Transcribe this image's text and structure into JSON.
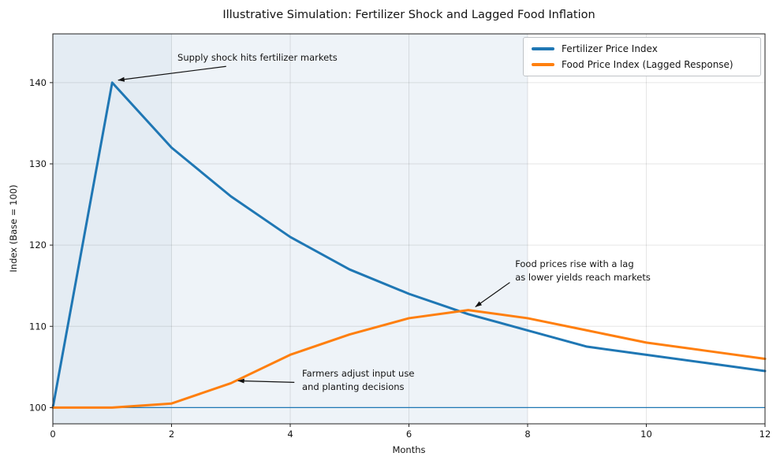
{
  "title": "Illustrative Simulation: Fertilizer Shock and Lagged Food Inflation",
  "chart_data": {
    "type": "line",
    "x": [
      0,
      1,
      2,
      3,
      4,
      5,
      6,
      7,
      8,
      9,
      10,
      11,
      12
    ],
    "series": [
      {
        "name": "Fertilizer Price Index",
        "color": "#1f77b4",
        "values": [
          100,
          140,
          132,
          126,
          121,
          117,
          114,
          111.5,
          109.5,
          107.5,
          106.5,
          105.5,
          104.5
        ]
      },
      {
        "name": "Food Price Index (Lagged Response)",
        "color": "#ff7f0e",
        "values": [
          100,
          100,
          100.5,
          103,
          106.5,
          109,
          111,
          112,
          111,
          109.5,
          108,
          107,
          106
        ]
      }
    ],
    "xlabel": "Months",
    "ylabel": "Index (Base = 100)",
    "xlim": [
      0,
      12
    ],
    "ylim": [
      98,
      146
    ],
    "xticks": [
      0,
      2,
      4,
      6,
      8,
      10,
      12
    ],
    "yticks": [
      100,
      110,
      120,
      130,
      140
    ],
    "grid": true,
    "legend_position": "upper right",
    "baseline": {
      "y": 100,
      "color": "#1f77b4"
    },
    "shaded_spans": [
      {
        "x0": 0,
        "x1": 2,
        "color": "#e4ecf3"
      },
      {
        "x0": 2,
        "x1": 8,
        "color": "#eef3f8"
      }
    ],
    "annotations": [
      {
        "lines": [
          "Supply shock hits fertilizer markets"
        ],
        "text_x": 2.1,
        "text_y": 143.9,
        "arrow_from": [
          2.92,
          142.0
        ],
        "arrow_to": [
          1.1,
          140.3
        ]
      },
      {
        "lines": [
          "Food prices rise with a lag",
          "as lower yields reach markets"
        ],
        "text_x": 7.79,
        "text_y": 118.5,
        "arrow_from": [
          7.7,
          115.4
        ],
        "arrow_to": [
          7.12,
          112.4
        ]
      },
      {
        "lines": [
          "Farmers adjust input use",
          "and planting decisions"
        ],
        "text_x": 4.2,
        "text_y": 105.0,
        "arrow_from": [
          4.07,
          103.1
        ],
        "arrow_to": [
          3.12,
          103.3
        ]
      }
    ]
  }
}
